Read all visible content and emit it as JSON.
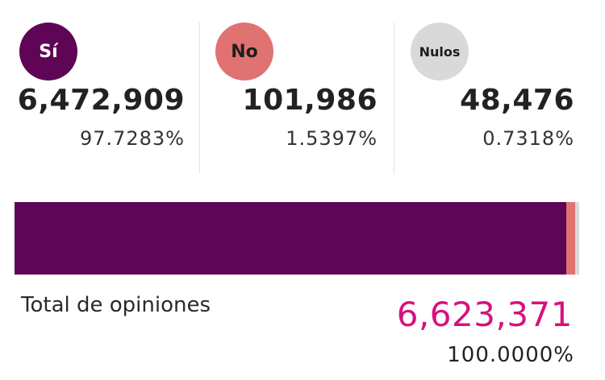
{
  "results": {
    "si": {
      "label": "Sí",
      "count": "6,472,909",
      "percent": "97.7283%",
      "share": 97.7283,
      "color": "#5f0555",
      "text_color": "#ffffff"
    },
    "no": {
      "label": "No",
      "count": "101,986",
      "percent": "1.5397%",
      "share": 1.5397,
      "color": "#e07272",
      "text_color": "#1e1e1e"
    },
    "nulos": {
      "label": "Nulos",
      "count": "48,476",
      "percent": "0.7318%",
      "share": 0.7318,
      "color": "#d9d9d9",
      "text_color": "#1e1e1e"
    }
  },
  "total": {
    "label": "Total de opiniones",
    "count": "6,623,371",
    "percent": "100.0000%",
    "color": "#d6117f"
  }
}
